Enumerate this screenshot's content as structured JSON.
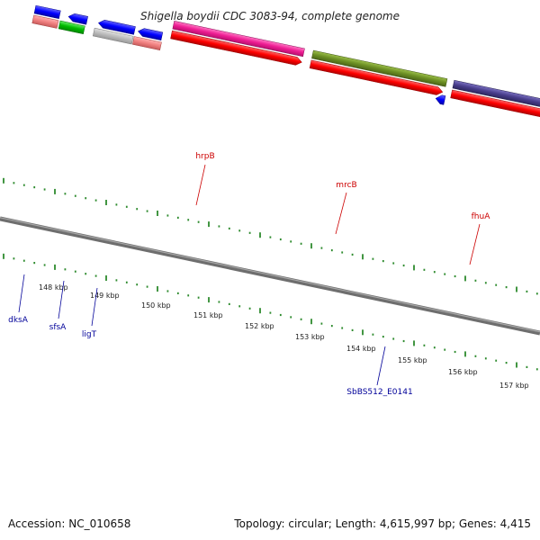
{
  "title": "Shigella boydii CDC 3083-94, complete genome",
  "footer": {
    "accession": "Accession: NC_010658",
    "summary": "Topology: circular; Length: 4,615,997 bp; Genes: 4,415"
  },
  "colors": {
    "backbone": "#7a7a7a",
    "tick": "#2e8b2e",
    "label_forward": "#cc0000",
    "label_reverse": "#000099",
    "cds": "#ff0000",
    "arrow_blue": "#0000ff"
  },
  "scale_ticks": [
    "148 kbp",
    "149 kbp",
    "150 kbp",
    "151 kbp",
    "152 kbp",
    "153 kbp",
    "154 kbp",
    "155 kbp",
    "156 kbp",
    "157 kbp"
  ],
  "genes": [
    {
      "name": "hrpB",
      "strand": "forward",
      "color": "#ee1c93",
      "icon": "rect-bar"
    },
    {
      "name": "mrcB",
      "strand": "forward",
      "color": "#6b8e23",
      "icon": "rect-bar"
    },
    {
      "name": "fhuA",
      "strand": "forward",
      "color": "#483d8b",
      "icon": "rect-bar"
    },
    {
      "name": "dksA",
      "strand": "reverse",
      "color": "#00bb00",
      "icon": "rect-bar"
    },
    {
      "name": "sfsA",
      "strand": "reverse",
      "color": "#bbbbbb",
      "icon": "rect-bar"
    },
    {
      "name": "ligT",
      "strand": "reverse",
      "color": "#f08080",
      "icon": "rect-bar"
    },
    {
      "name": "SbBS512_E0141",
      "strand": "reverse",
      "color": "#0000ff",
      "icon": "arrow"
    }
  ]
}
